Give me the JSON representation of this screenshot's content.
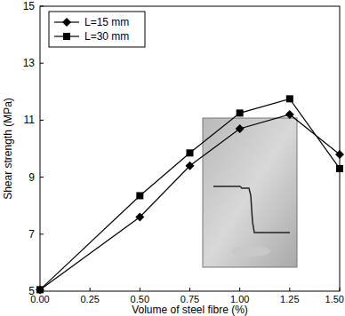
{
  "chart_data": {
    "type": "line",
    "x_label": "Volume of steel fibre (%)",
    "y_label": "Shear strength (MPa)",
    "x": [
      0,
      0.5,
      0.75,
      1.0,
      1.25,
      1.5
    ],
    "series": [
      {
        "name": "L=15 mm",
        "color": "#000000",
        "marker": "diamond",
        "line_style": "solid",
        "values": [
          5.05,
          7.6,
          9.4,
          10.7,
          11.2,
          9.8
        ]
      },
      {
        "name": "L=30 mm",
        "color": "#000000",
        "marker": "square",
        "line_style": "solid",
        "values": [
          5.05,
          8.35,
          9.85,
          11.25,
          11.75,
          9.3
        ]
      }
    ],
    "xlim": [
      0,
      1.5
    ],
    "xticks": [
      {
        "value": 0,
        "label": "0.00"
      },
      {
        "value": 0.25,
        "label": "0.25"
      },
      {
        "value": 0.5,
        "label": "0.50"
      },
      {
        "value": 0.75,
        "label": "0.75"
      },
      {
        "value": 1.0,
        "label": "1.00"
      },
      {
        "value": 1.25,
        "label": "1.25"
      },
      {
        "value": 1.5,
        "label": "1.50"
      }
    ],
    "ylim": [
      5,
      15
    ],
    "yticks": [
      5,
      7,
      9,
      11,
      13,
      15
    ],
    "grid": false,
    "legend": "top-left"
  }
}
